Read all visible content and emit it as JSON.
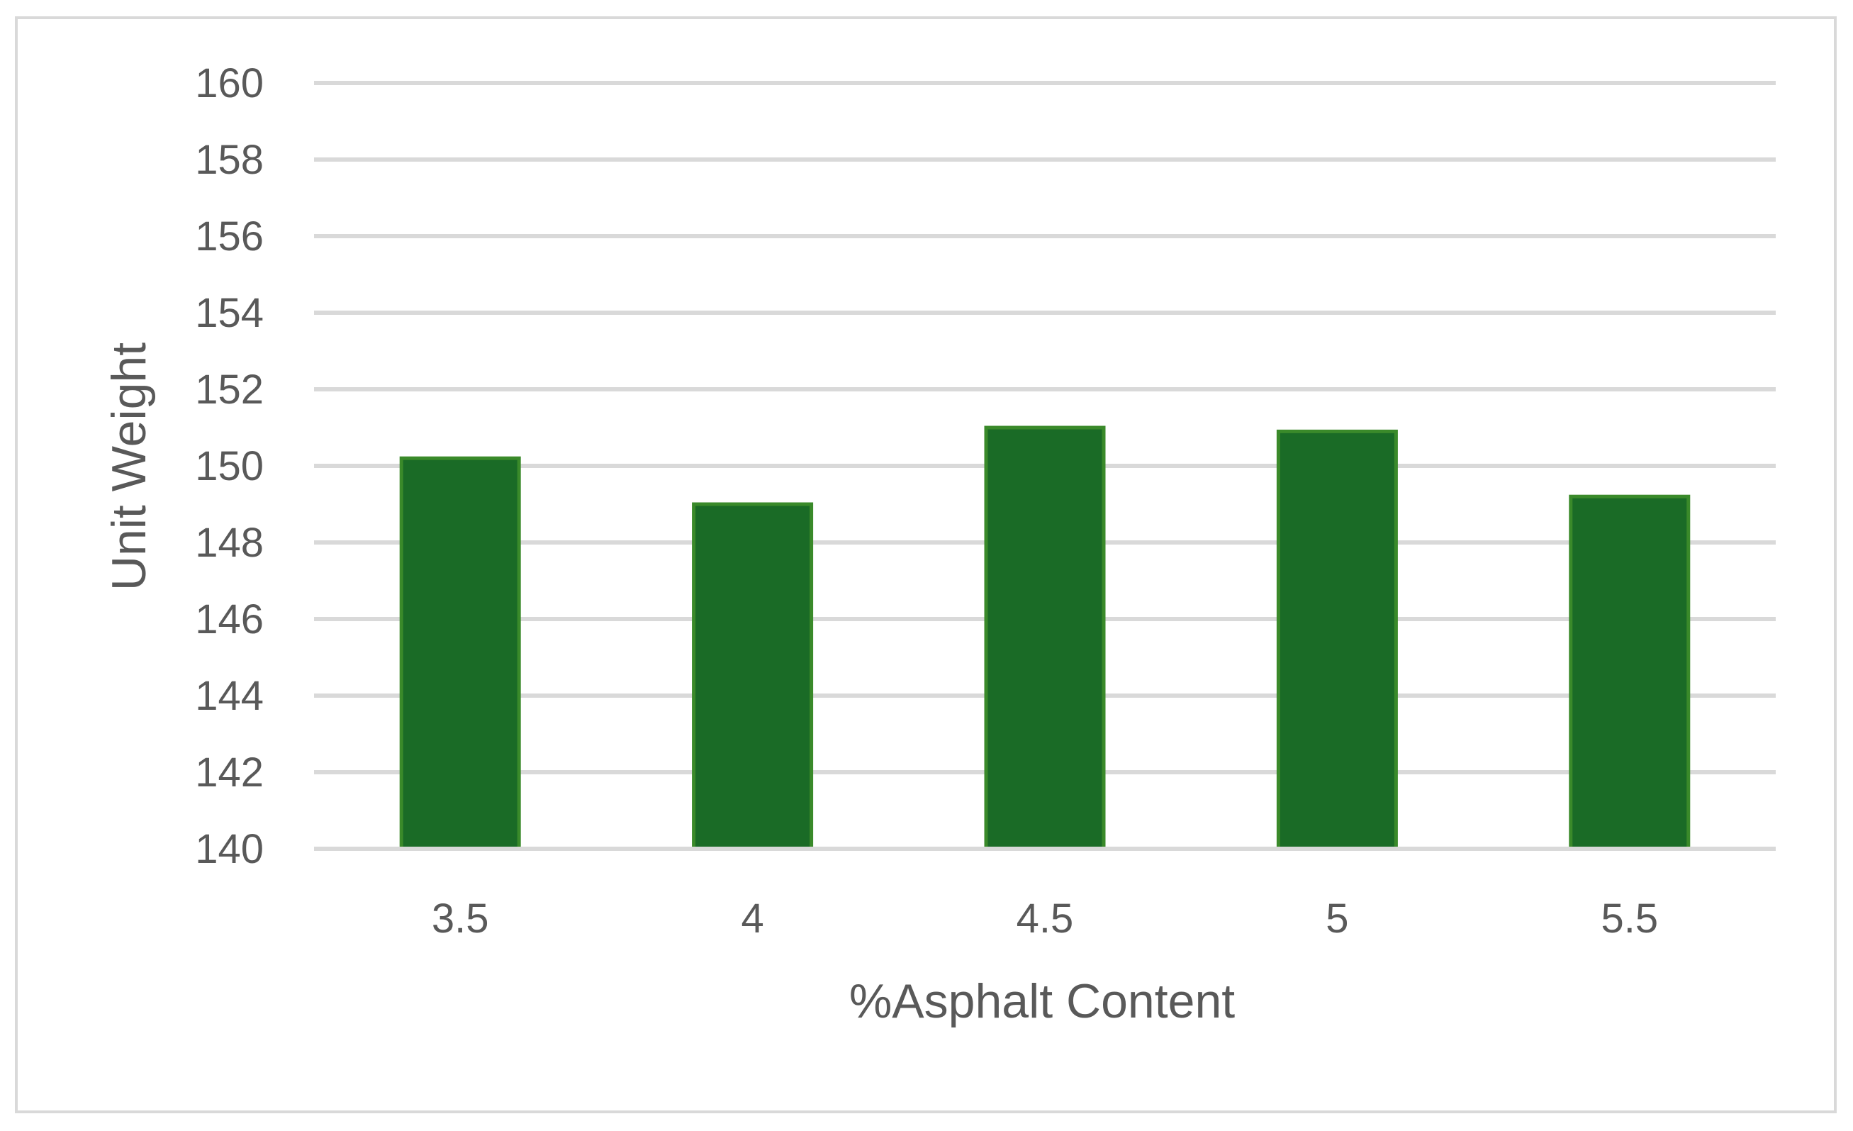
{
  "chart_data": {
    "type": "bar",
    "title": "",
    "xlabel": "%Asphalt Content",
    "ylabel": "Unit Weight",
    "categories": [
      "3.5",
      "4",
      "4.5",
      "5",
      "5.5"
    ],
    "values": [
      150.2,
      149.0,
      151.0,
      150.9,
      149.2
    ],
    "ylim": [
      140,
      160
    ],
    "yticks": [
      "140",
      "142",
      "144",
      "146",
      "148",
      "150",
      "152",
      "154",
      "156",
      "158",
      "160"
    ],
    "grid": true,
    "legend": "none",
    "colors": {
      "bar_fill": "#1a6b26",
      "bar_stroke": "#3a8a2a",
      "gridline": "#d9d9d9",
      "text": "#595959",
      "frame": "#d9d9d9"
    }
  }
}
